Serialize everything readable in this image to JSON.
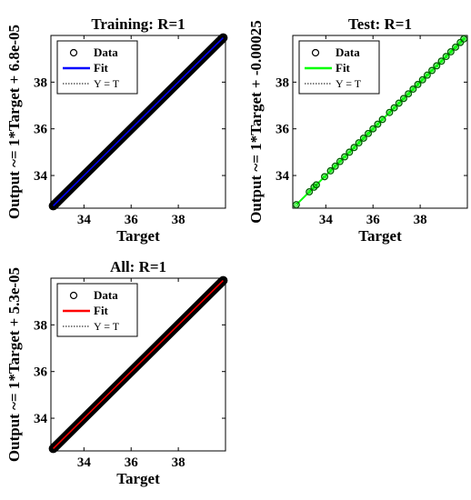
{
  "chart_data": [
    {
      "type": "scatter",
      "title": "Training: R=1",
      "xlabel": "Target",
      "ylabel": "Output ~= 1*Target + 6.8e-05",
      "xlim": [
        32.6,
        40.0
      ],
      "ylim": [
        32.6,
        40.0
      ],
      "x_ticks": [
        "34",
        "36",
        "38"
      ],
      "y_ticks": [
        "34",
        "36",
        "38"
      ],
      "fit_color": "#0000ff",
      "marker_color": "#000000",
      "legend": [
        "Data",
        "Fit",
        "Y = T"
      ],
      "legend_position": "top-left",
      "x_range": [
        32.7,
        39.9
      ],
      "y_range": [
        32.7,
        39.9
      ]
    },
    {
      "type": "scatter",
      "title": "Test: R=1",
      "xlabel": "Target",
      "ylabel": "Output ~= 1*Target + -0.00025",
      "xlim": [
        32.6,
        40.0
      ],
      "ylim": [
        32.6,
        40.0
      ],
      "x_ticks": [
        "34",
        "36",
        "38"
      ],
      "y_ticks": [
        "34",
        "36",
        "38"
      ],
      "fit_color": "#00ff00",
      "marker_color": "#006400",
      "legend": [
        "Data",
        "Fit",
        "Y = T"
      ],
      "legend_position": "top-left",
      "x": [
        32.75,
        33.3,
        33.5,
        33.6,
        33.95,
        34.2,
        34.4,
        34.6,
        34.8,
        35.0,
        35.2,
        35.4,
        35.6,
        35.8,
        36.0,
        36.2,
        36.4,
        36.7,
        36.9,
        37.1,
        37.3,
        37.5,
        37.7,
        37.9,
        38.1,
        38.3,
        38.5,
        38.7,
        38.9,
        39.1,
        39.3,
        39.5,
        39.7,
        39.85
      ]
    },
    {
      "type": "scatter",
      "title": "All: R=1",
      "xlabel": "Target",
      "ylabel": "Output ~= 1*Target + 5.3e-05",
      "xlim": [
        32.6,
        40.0
      ],
      "ylim": [
        32.6,
        40.0
      ],
      "x_ticks": [
        "34",
        "36",
        "38"
      ],
      "y_ticks": [
        "34",
        "36",
        "38"
      ],
      "fit_color": "#ff0000",
      "marker_color": "#000000",
      "legend": [
        "Data",
        "Fit",
        "Y = T"
      ],
      "legend_position": "top-left",
      "x_range": [
        32.7,
        39.9
      ],
      "y_range": [
        32.7,
        39.9
      ]
    }
  ]
}
